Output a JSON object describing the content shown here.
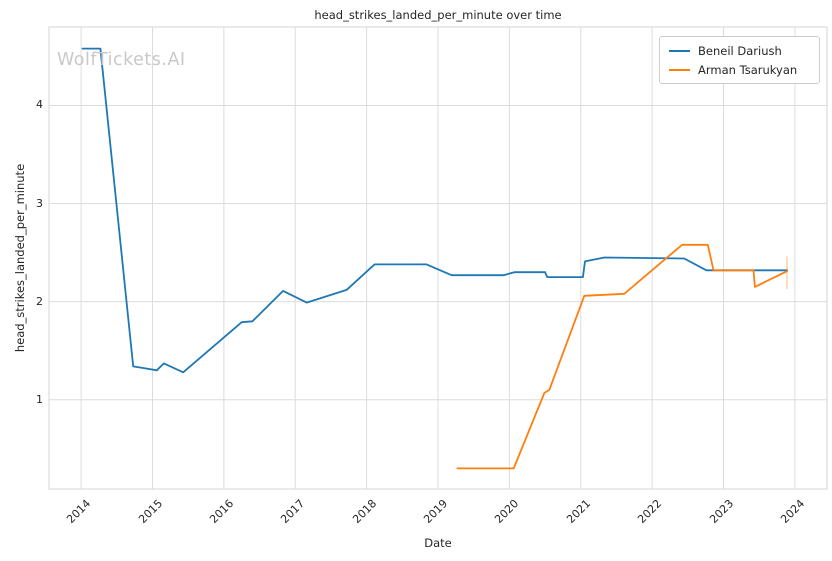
{
  "watermark": "WolfTickets.AI",
  "chart_data": {
    "type": "line",
    "title": "head_strikes_landed_per_minute over time",
    "xlabel": "Date",
    "ylabel": "head_strikes_landed_per_minute",
    "xlim": [
      2013.55,
      2024.45
    ],
    "ylim": [
      0.09,
      4.8
    ],
    "x_ticks": [
      2014,
      2015,
      2016,
      2017,
      2018,
      2019,
      2020,
      2021,
      2022,
      2023,
      2024
    ],
    "y_ticks": [
      1,
      2,
      3,
      4
    ],
    "grid": true,
    "legend_position": "upper right",
    "series": [
      {
        "name": "Beneil Dariush",
        "color": "#1f77b4",
        "points": [
          [
            2014.02,
            4.58
          ],
          [
            2014.27,
            4.58
          ],
          [
            2014.73,
            1.34
          ],
          [
            2014.9,
            1.32
          ],
          [
            2015.06,
            1.3
          ],
          [
            2015.16,
            1.37
          ],
          [
            2015.43,
            1.28
          ],
          [
            2016.25,
            1.79
          ],
          [
            2016.4,
            1.8
          ],
          [
            2016.83,
            2.11
          ],
          [
            2017.16,
            1.99
          ],
          [
            2017.72,
            2.12
          ],
          [
            2018.11,
            2.38
          ],
          [
            2018.84,
            2.38
          ],
          [
            2019.19,
            2.27
          ],
          [
            2019.92,
            2.27
          ],
          [
            2020.07,
            2.3
          ],
          [
            2020.5,
            2.3
          ],
          [
            2020.53,
            2.25
          ],
          [
            2021.03,
            2.25
          ],
          [
            2021.06,
            2.41
          ],
          [
            2021.33,
            2.45
          ],
          [
            2022.45,
            2.44
          ],
          [
            2022.76,
            2.32
          ],
          [
            2023.89,
            2.32
          ]
        ]
      },
      {
        "name": "Arman Tsarukyan",
        "color": "#ff7f0e",
        "points": [
          [
            2019.27,
            0.3
          ],
          [
            2020.06,
            0.3
          ],
          [
            2020.49,
            1.07
          ],
          [
            2020.56,
            1.1
          ],
          [
            2021.05,
            2.06
          ],
          [
            2021.61,
            2.08
          ],
          [
            2022.42,
            2.58
          ],
          [
            2022.78,
            2.58
          ],
          [
            2022.86,
            2.32
          ],
          [
            2023.42,
            2.32
          ],
          [
            2023.44,
            2.15
          ],
          [
            2023.89,
            2.31
          ]
        ]
      }
    ],
    "end_marker": {
      "x": 2023.89,
      "y_top": 2.42,
      "y_bottom": 2.15,
      "color": "#ffd3ad"
    }
  },
  "style": {
    "grid_color": "#dcdcdc",
    "spine_color": "#d6d6d6",
    "text_color": "#262626",
    "background": "#ffffff"
  }
}
